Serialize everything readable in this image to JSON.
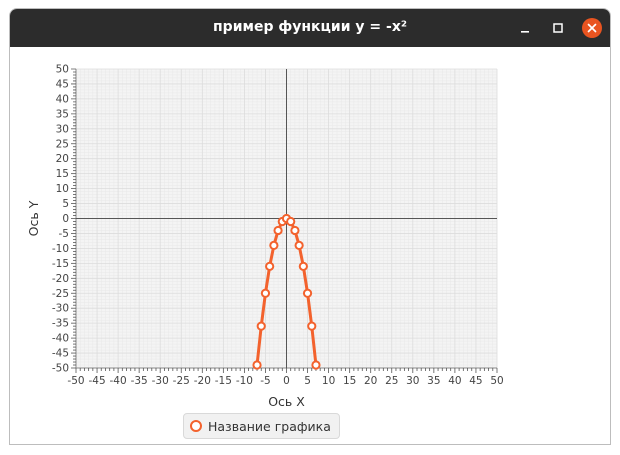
{
  "window": {
    "title": "пример функции y = -x²",
    "minimize_icon": "minimize-icon",
    "maximize_icon": "maximize-icon",
    "close_icon": "close-icon"
  },
  "colors": {
    "titlebar": "#2c2c2c",
    "close_button": "#e95420",
    "series": "#f3622d",
    "grid": "#e0e0e0",
    "plot_background": "#f4f4f4"
  },
  "chart_data": {
    "type": "line",
    "title": "",
    "xlabel": "Ось X",
    "ylabel": "Ось Y",
    "xlim": [
      -50,
      50
    ],
    "ylim": [
      -50,
      50
    ],
    "major_tick": 5,
    "minor_tick": 1,
    "grid": true,
    "legend_position": "bottom",
    "series": [
      {
        "name": "Название графика",
        "color": "#f3622d",
        "x": [
          -7,
          -6,
          -5,
          -4,
          -3,
          -2,
          -1,
          0,
          1,
          2,
          3,
          4,
          5,
          6,
          7
        ],
        "y": [
          -49,
          -36,
          -25,
          -16,
          -9,
          -4,
          -1,
          0,
          -1,
          -4,
          -9,
          -16,
          -25,
          -36,
          -49
        ]
      }
    ]
  }
}
